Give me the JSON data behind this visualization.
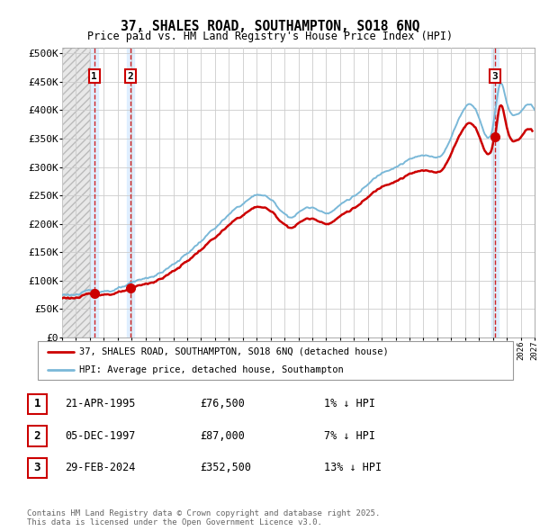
{
  "title": "37, SHALES ROAD, SOUTHAMPTON, SO18 6NQ",
  "subtitle": "Price paid vs. HM Land Registry's House Price Index (HPI)",
  "xlim": [
    1993.0,
    2027.0
  ],
  "ylim": [
    0,
    510000
  ],
  "yticks": [
    0,
    50000,
    100000,
    150000,
    200000,
    250000,
    300000,
    350000,
    400000,
    450000,
    500000
  ],
  "ytick_labels": [
    "£0",
    "£50K",
    "£100K",
    "£150K",
    "£200K",
    "£250K",
    "£300K",
    "£350K",
    "£400K",
    "£450K",
    "£500K"
  ],
  "sale_dates": [
    1995.31,
    1997.92,
    2024.16
  ],
  "sale_prices": [
    76500,
    87000,
    352500
  ],
  "sale_labels": [
    "1",
    "2",
    "3"
  ],
  "hpi_color": "#7ab8d8",
  "price_color": "#cc0000",
  "dashed_color": "#cc0000",
  "shade_color": "#ddeeff",
  "legend_line1": "37, SHALES ROAD, SOUTHAMPTON, SO18 6NQ (detached house)",
  "legend_line2": "HPI: Average price, detached house, Southampton",
  "transaction_rows": [
    {
      "label": "1",
      "date": "21-APR-1995",
      "price": "£76,500",
      "note": "1% ↓ HPI"
    },
    {
      "label": "2",
      "date": "05-DEC-1997",
      "price": "£87,000",
      "note": "7% ↓ HPI"
    },
    {
      "label": "3",
      "date": "29-FEB-2024",
      "price": "£352,500",
      "note": "13% ↓ HPI"
    }
  ],
  "footer": "Contains HM Land Registry data © Crown copyright and database right 2025.\nThis data is licensed under the Open Government Licence v3.0.",
  "bg_color": "#ffffff",
  "grid_color": "#cccccc"
}
